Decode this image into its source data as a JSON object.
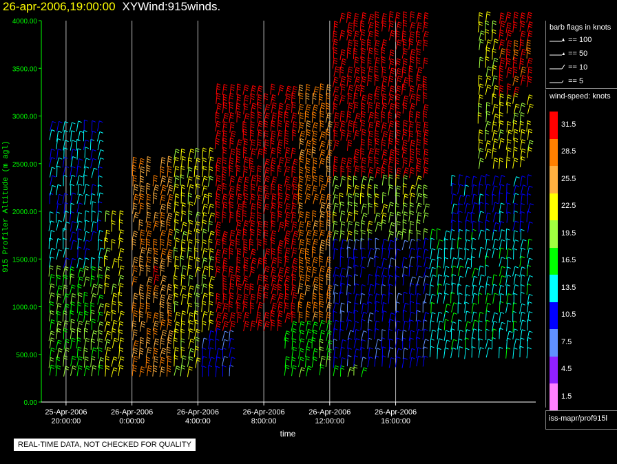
{
  "title": {
    "datetime": "26-apr-2006,19:00:00",
    "product": "XYWind:915winds."
  },
  "chart_data": {
    "type": "scatter",
    "ylabel": "915 Profiler Altitude (m agl)",
    "xlabel": "time",
    "ylim": [
      0,
      4000
    ],
    "y_ticks": [
      "0.00",
      "500.00",
      "1000.00",
      "1500.00",
      "2000.00",
      "2500.00",
      "3000.00",
      "3500.00",
      "4000.00"
    ],
    "x_ticks": [
      {
        "date": "25-Apr-2006",
        "time": "20:00:00"
      },
      {
        "date": "26-Apr-2006",
        "time": "0:00:00"
      },
      {
        "date": "26-Apr-2006",
        "time": "4:00:00"
      },
      {
        "date": "26-Apr-2006",
        "time": "8:00:00"
      },
      {
        "date": "26-Apr-2006",
        "time": "12:00:00"
      },
      {
        "date": "26-Apr-2006",
        "time": "16:00:00"
      }
    ],
    "grid": "vertical lines at x ticks",
    "wind_speed_regions": [
      {
        "from_hour": 19,
        "to_hour": 22,
        "alt_min": 250,
        "alt_max": 2900,
        "speed": 18
      },
      {
        "from_hour": 19,
        "to_hour": 22,
        "alt_min": 1400,
        "alt_max": 2900,
        "speed": 13
      },
      {
        "from_hour": 22,
        "to_hour": 23.5,
        "alt_min": 250,
        "alt_max": 1900,
        "speed": 22
      },
      {
        "from_hour": 24,
        "to_hour": 26.5,
        "alt_min": 250,
        "alt_max": 2500,
        "speed": 27
      },
      {
        "from_hour": 25,
        "to_hour": 25.6,
        "alt_min": 1100,
        "alt_max": 1400,
        "speed": 31
      },
      {
        "from_hour": 26.5,
        "to_hour": 29,
        "alt_min": 250,
        "alt_max": 2600,
        "speed": 22
      },
      {
        "from_hour": 28,
        "to_hour": 30,
        "alt_min": 250,
        "alt_max": 700,
        "speed": 10
      },
      {
        "from_hour": 29,
        "to_hour": 34,
        "alt_min": 700,
        "alt_max": 3300,
        "speed": 32
      },
      {
        "from_hour": 34,
        "to_hour": 37,
        "alt_min": 700,
        "alt_max": 3300,
        "speed": 28
      },
      {
        "from_hour": 33,
        "to_hour": 38,
        "alt_min": 250,
        "alt_max": 800,
        "speed": 17
      },
      {
        "from_hour": 36,
        "to_hour": 42,
        "alt_min": 2300,
        "alt_max": 4000,
        "speed": 32
      },
      {
        "from_hour": 36,
        "to_hour": 42,
        "alt_min": 1600,
        "alt_max": 2300,
        "speed": 20
      },
      {
        "from_hour": 36,
        "to_hour": 42,
        "alt_min": 300,
        "alt_max": 1600,
        "speed": 10
      },
      {
        "from_hour": 42,
        "to_hour": 48,
        "alt_min": 400,
        "alt_max": 1700,
        "speed": 14
      },
      {
        "from_hour": 43,
        "to_hour": 48,
        "alt_min": 1700,
        "alt_max": 2300,
        "speed": 11
      },
      {
        "from_hour": 45,
        "to_hour": 48,
        "alt_min": 2400,
        "alt_max": 4000,
        "speed": 22
      },
      {
        "from_hour": 46,
        "to_hour": 48,
        "alt_min": 3200,
        "alt_max": 4000,
        "speed": 31
      }
    ]
  },
  "legend_flags": {
    "header": "barb flags in knots",
    "items": [
      "== 100",
      "== 50",
      "== 10",
      "== 5"
    ]
  },
  "legend_speed": {
    "header": "wind-speed: knots",
    "bins": [
      {
        "label": "31.5",
        "color": "#ff0000"
      },
      {
        "label": "28.5",
        "color": "#ff8000"
      },
      {
        "label": "25.5",
        "color": "#ffb040"
      },
      {
        "label": "22.5",
        "color": "#ffff00"
      },
      {
        "label": "19.5",
        "color": "#a0ff40"
      },
      {
        "label": "16.5",
        "color": "#00ff00"
      },
      {
        "label": "13.5",
        "color": "#00ffff"
      },
      {
        "label": "10.5",
        "color": "#0000ff"
      },
      {
        "label": "7.5",
        "color": "#6090ff"
      },
      {
        "label": "4.5",
        "color": "#9020ff"
      },
      {
        "label": "1.5",
        "color": "#ff80ff"
      }
    ]
  },
  "source": "iss-mapr/prof915l",
  "notice": "REAL-TIME DATA, NOT CHECKED FOR QUALITY"
}
